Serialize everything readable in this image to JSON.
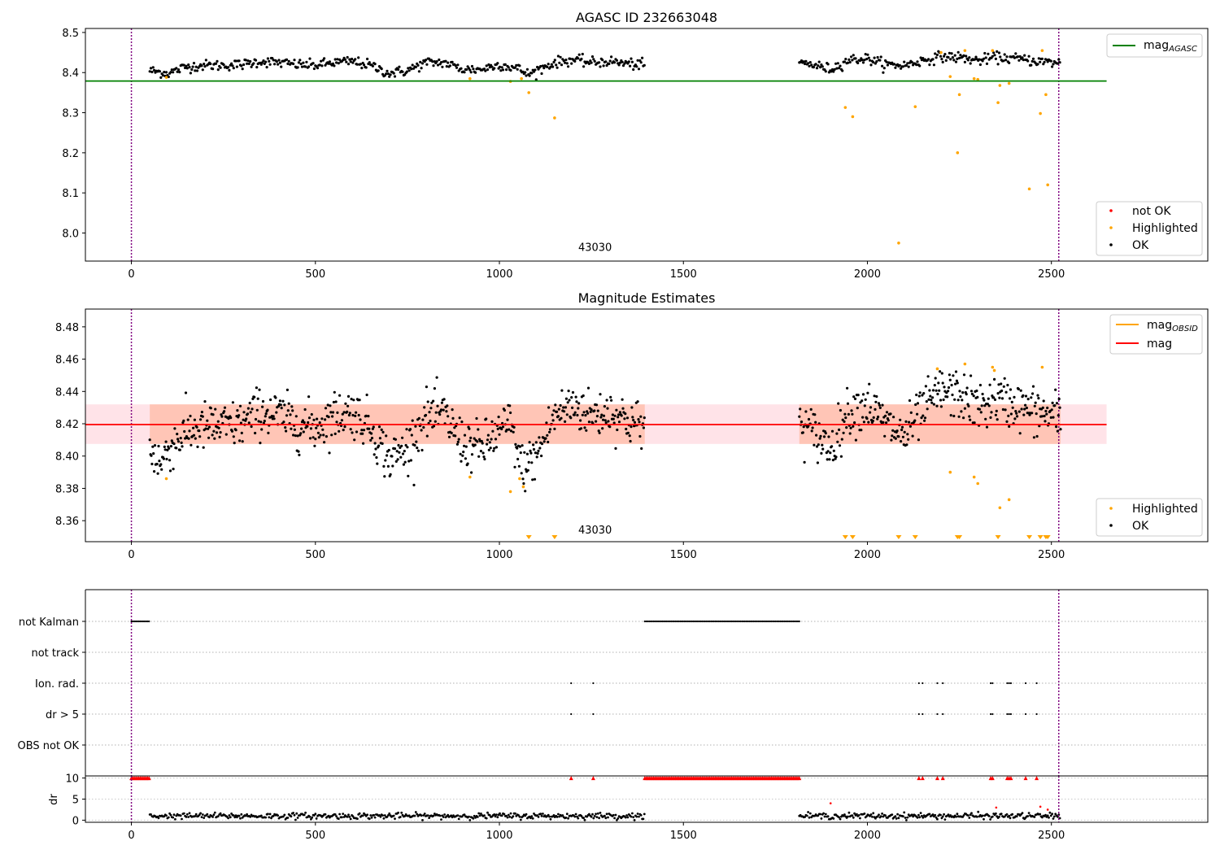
{
  "chart_data": [
    {
      "type": "scatter",
      "title": "AGASC ID 232663048",
      "xlabel": "",
      "ylabel": "",
      "xlim": [
        -125,
        2925
      ],
      "ylim": [
        7.93,
        8.51
      ],
      "xticks": [
        0,
        500,
        1000,
        1500,
        2000,
        2500
      ],
      "xtick_labels": [
        "0",
        "500",
        "1000",
        "1500",
        "2000",
        "2500"
      ],
      "yticks": [
        8.0,
        8.1,
        8.2,
        8.3,
        8.4,
        8.5
      ],
      "ytick_labels": [
        "8.0",
        "8.1",
        "8.2",
        "8.3",
        "8.4",
        "8.5"
      ],
      "vlines": [
        0,
        2520
      ],
      "annotation": {
        "text": "43030",
        "x": 1260,
        "y": 7.955
      },
      "hlines": [
        {
          "name": "mag",
          "name_subscript": "AGASC",
          "y": 8.379,
          "x_range": [
            -125,
            2650
          ],
          "color": "#008000"
        }
      ],
      "segments": [
        {
          "x0": 50,
          "x1": 1395,
          "points": [
            [
              50,
              8.405
            ],
            [
              100,
              8.398
            ],
            [
              150,
              8.415
            ],
            [
              200,
              8.418
            ],
            [
              250,
              8.418
            ],
            [
              300,
              8.42
            ],
            [
              350,
              8.428
            ],
            [
              400,
              8.425
            ],
            [
              450,
              8.42
            ],
            [
              500,
              8.418
            ],
            [
              550,
              8.425
            ],
            [
              600,
              8.428
            ],
            [
              650,
              8.418
            ],
            [
              700,
              8.398
            ],
            [
              750,
              8.405
            ],
            [
              800,
              8.425
            ],
            [
              850,
              8.425
            ],
            [
              900,
              8.408
            ],
            [
              950,
              8.408
            ],
            [
              1000,
              8.42
            ],
            [
              1050,
              8.41
            ],
            [
              1080,
              8.395
            ],
            [
              1100,
              8.405
            ],
            [
              1150,
              8.425
            ],
            [
              1200,
              8.432
            ],
            [
              1250,
              8.425
            ],
            [
              1300,
              8.428
            ],
            [
              1350,
              8.422
            ],
            [
              1395,
              8.418
            ]
          ]
        },
        {
          "x0": 1815,
          "x1": 2525,
          "points": [
            [
              1815,
              8.425
            ],
            [
              1850,
              8.42
            ],
            [
              1900,
              8.408
            ],
            [
              1950,
              8.432
            ],
            [
              2000,
              8.435
            ],
            [
              2050,
              8.42
            ],
            [
              2100,
              8.418
            ],
            [
              2150,
              8.43
            ],
            [
              2200,
              8.44
            ],
            [
              2250,
              8.438
            ],
            [
              2300,
              8.43
            ],
            [
              2350,
              8.438
            ],
            [
              2400,
              8.435
            ],
            [
              2450,
              8.43
            ],
            [
              2500,
              8.425
            ],
            [
              2525,
              8.425
            ]
          ]
        }
      ],
      "highlighted": [
        [
          95,
          8.388
        ],
        [
          920,
          8.385
        ],
        [
          1030,
          8.378
        ],
        [
          1060,
          8.385
        ],
        [
          1080,
          8.35
        ],
        [
          1150,
          8.287
        ],
        [
          1940,
          8.313
        ],
        [
          1960,
          8.29
        ],
        [
          2085,
          7.975
        ],
        [
          2130,
          8.315
        ],
        [
          2200,
          8.45
        ],
        [
          2225,
          8.39
        ],
        [
          2245,
          8.2
        ],
        [
          2250,
          8.345
        ],
        [
          2265,
          8.455
        ],
        [
          2290,
          8.385
        ],
        [
          2300,
          8.383
        ],
        [
          2340,
          8.455
        ],
        [
          2355,
          8.325
        ],
        [
          2360,
          8.368
        ],
        [
          2385,
          8.373
        ],
        [
          2440,
          8.11
        ],
        [
          2470,
          8.298
        ],
        [
          2475,
          8.455
        ],
        [
          2485,
          8.345
        ],
        [
          2490,
          8.12
        ]
      ],
      "legend_lines": [
        {
          "name": "mag",
          "subscript": "AGASC",
          "color": "#008000"
        }
      ],
      "legend_markers": [
        {
          "name": "not OK",
          "color": "#ff0000"
        },
        {
          "name": "Highlighted",
          "color": "#ffa500"
        },
        {
          "name": "OK",
          "color": "#000000"
        }
      ]
    },
    {
      "type": "scatter",
      "title": "Magnitude Estimates",
      "xlabel": "",
      "ylabel": "",
      "xlim": [
        -125,
        2925
      ],
      "ylim": [
        8.347,
        8.491
      ],
      "xticks": [
        0,
        500,
        1000,
        1500,
        2000,
        2500
      ],
      "xtick_labels": [
        "0",
        "500",
        "1000",
        "1500",
        "2000",
        "2500"
      ],
      "yticks": [
        8.36,
        8.38,
        8.4,
        8.42,
        8.44,
        8.46,
        8.48
      ],
      "ytick_labels": [
        "8.36",
        "8.38",
        "8.40",
        "8.42",
        "8.44",
        "8.46",
        "8.48"
      ],
      "vlines": [
        0,
        2520
      ],
      "annotation": {
        "text": "43030",
        "x": 1260,
        "y": 8.352
      },
      "mag_line": {
        "y": 8.4195,
        "x_range": [
          -125,
          2650
        ],
        "color": "#ff0000"
      },
      "mag_band": {
        "y0": 8.4075,
        "y1": 8.432,
        "x_range": [
          -125,
          2650
        ],
        "color": "#ffc0cb"
      },
      "obsid_band": {
        "y0": 8.4075,
        "y1": 8.432,
        "x_ranges": [
          [
            50,
            1395
          ],
          [
            1815,
            2525
          ]
        ],
        "color": "#ffa07a"
      },
      "segments": [
        {
          "x0": 50,
          "x1": 1395,
          "points": [
            [
              50,
              8.405
            ],
            [
              80,
              8.395
            ],
            [
              100,
              8.405
            ],
            [
              150,
              8.415
            ],
            [
              200,
              8.418
            ],
            [
              250,
              8.418
            ],
            [
              300,
              8.42
            ],
            [
              350,
              8.428
            ],
            [
              400,
              8.425
            ],
            [
              450,
              8.42
            ],
            [
              500,
              8.418
            ],
            [
              550,
              8.425
            ],
            [
              600,
              8.428
            ],
            [
              650,
              8.418
            ],
            [
              700,
              8.398
            ],
            [
              750,
              8.405
            ],
            [
              800,
              8.425
            ],
            [
              850,
              8.425
            ],
            [
              900,
              8.408
            ],
            [
              950,
              8.405
            ],
            [
              1000,
              8.415
            ],
            [
              1030,
              8.42
            ],
            [
              1060,
              8.392
            ],
            [
              1100,
              8.4
            ],
            [
              1150,
              8.425
            ],
            [
              1200,
              8.432
            ],
            [
              1250,
              8.425
            ],
            [
              1300,
              8.428
            ],
            [
              1350,
              8.422
            ],
            [
              1395,
              8.418
            ]
          ]
        },
        {
          "x0": 1815,
          "x1": 2525,
          "points": [
            [
              1815,
              8.42
            ],
            [
              1850,
              8.415
            ],
            [
              1900,
              8.405
            ],
            [
              1950,
              8.428
            ],
            [
              2000,
              8.432
            ],
            [
              2050,
              8.42
            ],
            [
              2100,
              8.412
            ],
            [
              2150,
              8.428
            ],
            [
              2200,
              8.44
            ],
            [
              2250,
              8.438
            ],
            [
              2300,
              8.43
            ],
            [
              2350,
              8.435
            ],
            [
              2400,
              8.432
            ],
            [
              2450,
              8.428
            ],
            [
              2500,
              8.425
            ],
            [
              2525,
              8.425
            ]
          ]
        }
      ],
      "highlighted": [
        [
          95,
          8.386
        ],
        [
          920,
          8.387
        ],
        [
          1030,
          8.378
        ],
        [
          1055,
          8.386
        ],
        [
          1065,
          8.381
        ],
        [
          2190,
          8.454
        ],
        [
          2225,
          8.39
        ],
        [
          2265,
          8.457
        ],
        [
          2290,
          8.387
        ],
        [
          2300,
          8.383
        ],
        [
          2340,
          8.455
        ],
        [
          2345,
          8.453
        ],
        [
          2360,
          8.368
        ],
        [
          2385,
          8.373
        ],
        [
          2475,
          8.455
        ]
      ],
      "highlighted_below": [
        1080,
        1150,
        1940,
        1960,
        2085,
        2130,
        2245,
        2250,
        2355,
        2440,
        2470,
        2485,
        2490
      ],
      "legend_lines": [
        {
          "name": "mag",
          "subscript": "OBSID",
          "color": "#ffa500"
        },
        {
          "name": "mag",
          "subscript": "",
          "color": "#ff0000"
        }
      ],
      "legend_markers": [
        {
          "name": "Highlighted",
          "color": "#ffa500"
        },
        {
          "name": "OK",
          "color": "#000000"
        }
      ]
    },
    {
      "type": "scatter",
      "title": "",
      "xlim": [
        -125,
        2925
      ],
      "categories": [
        "not Kalman",
        "not track",
        "Ion. rad.",
        "dr > 5",
        "OBS not OK"
      ],
      "vlines": [
        0,
        2520
      ],
      "flags": {
        "not Kalman": [
          [
            0,
            50
          ],
          [
            1395,
            1815
          ]
        ],
        "not track": [],
        "Ion. rad.": [
          1195,
          1255,
          2140,
          2150,
          2190,
          2205,
          2335,
          2340,
          2380,
          2385,
          2390,
          2430,
          2460
        ],
        "dr > 5": [
          1195,
          1255,
          2140,
          2150,
          2190,
          2205,
          2335,
          2340,
          2380,
          2385,
          2390,
          2430,
          2460
        ],
        "OBS not OK": []
      }
    },
    {
      "type": "scatter",
      "title": "",
      "xlabel": "",
      "ylabel": "dr",
      "xlim": [
        -125,
        2925
      ],
      "ylim": [
        -0.5,
        10.5
      ],
      "xticks": [
        0,
        500,
        1000,
        1500,
        2000,
        2500
      ],
      "xtick_labels": [
        "0",
        "500",
        "1000",
        "1500",
        "2000",
        "2500"
      ],
      "yticks": [
        0,
        5,
        10
      ],
      "ytick_labels": [
        "0",
        "5",
        "10"
      ],
      "vlines": [
        0,
        2520
      ],
      "capped_value": 10,
      "capped_ranges": [
        [
          0,
          50
        ],
        [
          1395,
          1815
        ]
      ],
      "capped_points": [
        1195,
        1255,
        2140,
        2150,
        2190,
        2205,
        2335,
        2340,
        2380,
        2385,
        2390,
        2430,
        2460
      ],
      "ok_segments": [
        [
          50,
          1395
        ],
        [
          1815,
          2525
        ]
      ],
      "ok_level": 1.0,
      "notok_points": [
        [
          1900,
          4.0
        ],
        [
          2350,
          3.0
        ],
        [
          2470,
          3.2
        ],
        [
          2490,
          2.5
        ]
      ]
    }
  ]
}
